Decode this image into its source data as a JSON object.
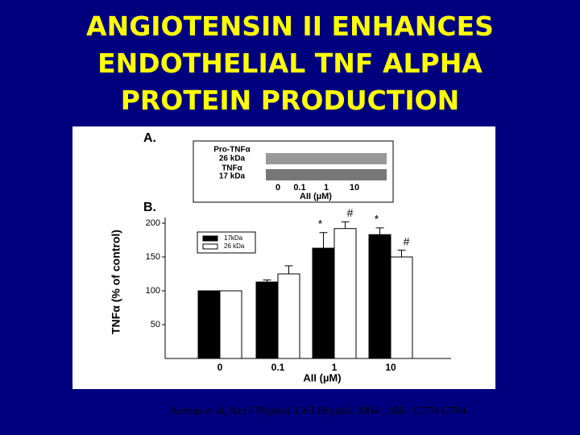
{
  "slide": {
    "title": "ANGIOTENSIN II ENHANCES ENDOTHELIAL TNF ALPHA PROTEIN PRODUCTION",
    "citation": "Arenas et al, Am J Physiol. Cell Physiol. 2004 ; 286 : C779-C784"
  },
  "blot": {
    "panel_label": "A.",
    "labels": [
      "Pro-TNFα",
      "26 kDa",
      "TNFα",
      "17 kDa"
    ],
    "lanes": [
      "0",
      "0.1",
      "1",
      "10"
    ],
    "xlabel": "AII (µM)"
  },
  "chart_data": {
    "type": "bar",
    "panel_label": "B.",
    "ylabel": "TNFα (% of control)",
    "xlabel": "AII (µM)",
    "categories": [
      "0",
      "0.1",
      "1",
      "10"
    ],
    "series": [
      {
        "name": "17kDa",
        "color": "#000000",
        "values": [
          100,
          113,
          163,
          183
        ],
        "errors": [
          0,
          3,
          23,
          10
        ],
        "annotations": [
          null,
          null,
          "*",
          "*"
        ]
      },
      {
        "name": "26 kDa",
        "color": "#ffffff",
        "values": [
          100,
          125,
          192,
          150
        ],
        "errors": [
          0,
          12,
          10,
          10
        ],
        "annotations": [
          null,
          null,
          "#",
          "#"
        ]
      }
    ],
    "ylim": [
      0,
      200
    ],
    "yticks": [
      50,
      100,
      150,
      200
    ],
    "legend": "upper left"
  }
}
